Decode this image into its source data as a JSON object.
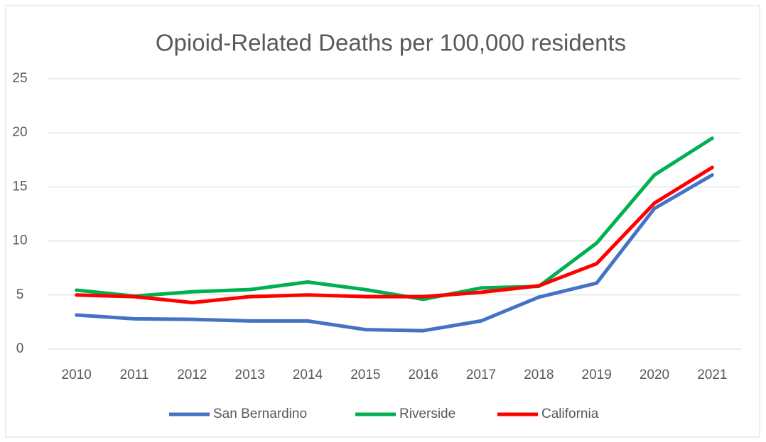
{
  "chart_data": {
    "type": "line",
    "title": "Opioid-Related Deaths per 100,000 residents",
    "categories": [
      "2010",
      "2011",
      "2012",
      "2013",
      "2014",
      "2015",
      "2016",
      "2017",
      "2018",
      "2019",
      "2020",
      "2021"
    ],
    "series": [
      {
        "name": "San Bernardino",
        "color": "#4472c4",
        "values": [
          3.15,
          2.8,
          2.75,
          2.6,
          2.6,
          1.8,
          1.7,
          2.6,
          4.8,
          6.1,
          13.0,
          16.1
        ]
      },
      {
        "name": "Riverside",
        "color": "#00b050",
        "values": [
          5.45,
          4.9,
          5.3,
          5.5,
          6.2,
          5.5,
          4.6,
          5.65,
          5.8,
          9.8,
          16.1,
          19.5
        ]
      },
      {
        "name": "California",
        "color": "#ff0000",
        "values": [
          5.0,
          4.85,
          4.3,
          4.85,
          5.0,
          4.85,
          4.85,
          5.25,
          5.85,
          7.9,
          13.5,
          16.8
        ]
      }
    ],
    "ylim": [
      0,
      25
    ],
    "yticks": [
      0,
      5,
      10,
      15,
      20,
      25
    ],
    "grid": true,
    "legend": "bottom"
  }
}
